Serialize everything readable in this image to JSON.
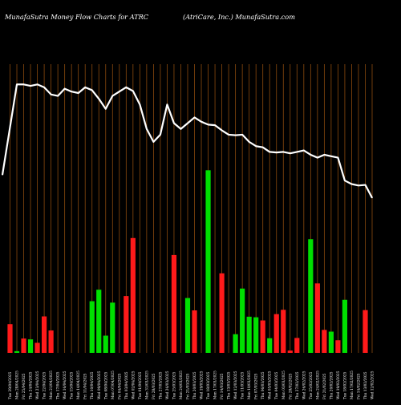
{
  "header": {
    "left": "MunafaSutra  Money Flow  Charts for ATRC",
    "right": "(AtriCare,  Inc.) MunafaSutra.com"
  },
  "colors": {
    "background": "#000000",
    "grid": "#8b4a0e",
    "up": "#00e000",
    "down": "#ff1a1a",
    "line": "#ffffff"
  },
  "chart_data": {
    "type": "bar",
    "title": "MunafaSutra  Money Flow  Charts for ATRC",
    "subtitle": "(AtriCare,  Inc.) MunafaSutra.com",
    "grid": true,
    "categories": [
      "Tue 29 Apr",
      "Mon 28 Apr",
      "Fri 25 Apr",
      "Thu 24 Apr",
      "Wed 23 Apr",
      "Tue 22 Apr",
      "Mon 21 Apr",
      "Thu 17 Apr",
      "Wed 16 Apr",
      "Tue 15 Apr",
      "Mon 14 Apr",
      "Fri 11 Apr",
      "Thu 10 Apr",
      "Wed 09 Apr",
      "Tue 08 Apr",
      "Mon 07 Apr",
      "Fri 04 Apr",
      "Thu 03 Apr",
      "Wed 02 Apr",
      "Tue 01 Apr",
      "Mon 31 Mar",
      "Fri 28 Mar",
      "Thu 27 Mar",
      "Wed 26 Mar",
      "Tue 25 Mar",
      "Mon 24 Mar",
      "Fri 21 Mar",
      "Thu 20 Mar",
      "Wed 19 Mar",
      "Tue 18 Mar",
      "Mon 17 Mar",
      "Fri 14 Mar",
      "Thu 13 Mar",
      "Wed 12 Mar",
      "Tue 11 Mar",
      "Mon 10 Mar",
      "Fri 07 Mar",
      "Thu 06 Mar",
      "Wed 05 Mar",
      "Tue 04 Mar",
      "Mon 03 Mar",
      "Fri 28 Feb",
      "Thu 27 Feb",
      "Wed 26 Feb",
      "Tue 25 Feb",
      "Mon 24 Feb",
      "Fri 21 Feb",
      "Thu 20 Feb",
      "Wed 19 Feb",
      "Tue 18 Feb",
      "Mon 17 Feb",
      "Fri 14 Feb",
      "Thu 13 Feb",
      "Wed 12 Feb"
    ],
    "x_tick_labels": [
      "Tue 29/04/2025",
      "Mon 28/04/2025",
      "Fri 25/04/2025",
      "Thu 24/04/2025",
      "Wed 23/04/2025",
      "Tue 22/04/2025",
      "Mon 21/04/2025",
      "Thu 17/04/2025",
      "Wed 16/04/2025",
      "Tue 15/04/2025",
      "Mon 14/04/2025",
      "Fri 11/04/2025",
      "Thu 10/04/2025",
      "Wed 09/04/2025",
      "Tue 08/04/2025",
      "Mon 07/04/2025",
      "Fri 04/04/2025",
      "Thu 03/04/2025",
      "Wed 02/04/2025",
      "Tue 01/04/2025",
      "Mon 31/03/2025",
      "Fri 28/03/2025",
      "Thu 27/03/2025",
      "Wed 26/03/2025",
      "Tue 25/03/2025",
      "Mon 24/03/2025",
      "Fri 21/03/2025",
      "Thu 20/03/2025",
      "Wed 19/03/2025",
      "Tue 18/03/2025",
      "Mon 17/03/2025",
      "Fri 14/03/2025",
      "Thu 13/03/2025",
      "Wed 12/03/2025",
      "Tue 11/03/2025",
      "Mon 10/03/2025",
      "Fri 07/03/2025",
      "Thu 06/03/2025",
      "Wed 05/03/2025",
      "Tue 04/03/2025",
      "Mon 03/03/2025",
      "Fri 28/02/2025",
      "Thu 27/02/2025",
      "Wed 26/02/2025",
      "Tue 25/02/2025",
      "Mon 24/02/2025",
      "Fri 21/02/2025",
      "Thu 20/02/2025",
      "Wed 19/02/2025",
      "Tue 18/02/2025",
      "Mon 17/02/2025",
      "Fri 14/02/2025",
      "Thu 13/02/2025",
      "Wed 12/02/2025"
    ],
    "bar_values": [
      10,
      0.6,
      5,
      4.7,
      3.5,
      12.7,
      7.8,
      0,
      0,
      0,
      0,
      0,
      18,
      22,
      6,
      17.5,
      0,
      19.8,
      40,
      0,
      0,
      0,
      0,
      0,
      34.1,
      0,
      19.1,
      14.8,
      0,
      63.6,
      0,
      27.7,
      0,
      6.5,
      22.4,
      12.6,
      12.4,
      11.3,
      5.1,
      13.5,
      15,
      0.8,
      5.2,
      0,
      39.6,
      24.2,
      8,
      7.4,
      4.4,
      18.5,
      0,
      0,
      14.9,
      0
    ],
    "bar_colors": [
      "down",
      "up",
      "down",
      "up",
      "down",
      "down",
      "down",
      "down",
      "down",
      "down",
      "down",
      "down",
      "up",
      "up",
      "up",
      "up",
      "up",
      "down",
      "down",
      "up",
      "up",
      "up",
      "up",
      "up",
      "down",
      "down",
      "up",
      "down",
      "down",
      "up",
      "up",
      "down",
      "down",
      "up",
      "up",
      "up",
      "up",
      "down",
      "up",
      "down",
      "down",
      "down",
      "down",
      "up",
      "up",
      "down",
      "down",
      "up",
      "down",
      "up",
      "up",
      "up",
      "down",
      "up"
    ],
    "line_values": [
      62,
      93.5,
      93.5,
      93,
      93.5,
      92.5,
      90,
      89.5,
      92,
      91,
      90.5,
      92.5,
      91.5,
      88.5,
      85,
      89.5,
      91,
      92.5,
      91.2,
      86.5,
      78,
      73.5,
      76,
      86.5,
      80,
      78,
      80,
      82,
      80.5,
      79.5,
      79.3,
      77.5,
      76,
      75.8,
      76,
      73.5,
      72,
      71.6,
      70,
      69.8,
      70,
      69.5,
      70,
      70.5,
      69,
      68,
      69,
      68.5,
      68,
      60,
      58.8,
      58.3,
      58.5,
      54
    ],
    "ylim": [
      0,
      100
    ]
  }
}
